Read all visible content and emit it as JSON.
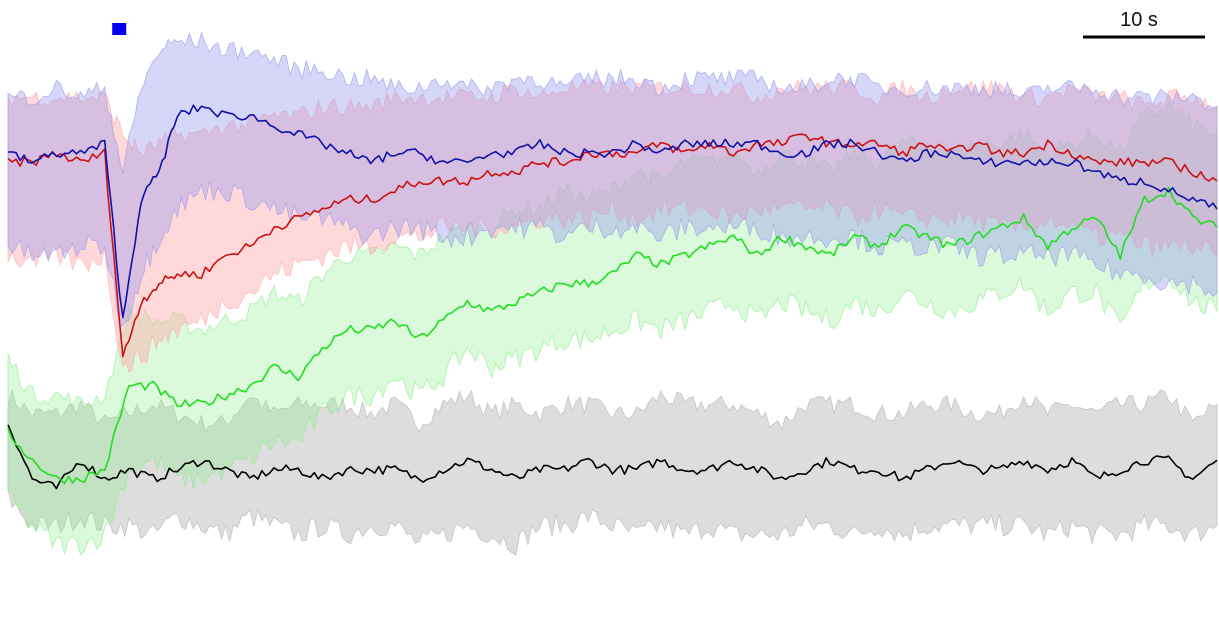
{
  "chart_data": {
    "type": "line",
    "title": "",
    "xlabel": "",
    "ylabel": "",
    "grid": false,
    "legend": "none",
    "xlim": [
      0,
      100
    ],
    "ylim": [
      -3.4,
      2.4
    ],
    "scale_bar": {
      "label": "10 s",
      "seconds": 10
    },
    "stimulus_marker": {
      "x": 9.2,
      "color": "#0000ee"
    },
    "series": [
      {
        "color": "#000000",
        "band_color": "#b4b4b4",
        "band_opacity": 0.45,
        "x": [
          0,
          2,
          4,
          6,
          8,
          10,
          12,
          14,
          16,
          18,
          20,
          22,
          24,
          26,
          28,
          30,
          32,
          34,
          36,
          38,
          40,
          42,
          44,
          46,
          48,
          50,
          52,
          54,
          56,
          58,
          60,
          62,
          64,
          66,
          68,
          70,
          72,
          74,
          76,
          78,
          80,
          82,
          84,
          86,
          88,
          90,
          92,
          94,
          96,
          98,
          100
        ],
        "mean": [
          -1.5,
          -2.1,
          -2.2,
          -1.9,
          -2.1,
          -2.0,
          -2.1,
          -2.0,
          -1.9,
          -2.0,
          -2.1,
          -2.0,
          -2.0,
          -2.1,
          -2.0,
          -2.0,
          -2.0,
          -2.1,
          -2.0,
          -1.9,
          -2.0,
          -2.1,
          -2.0,
          -2.0,
          -1.9,
          -2.0,
          -2.0,
          -1.9,
          -2.0,
          -2.0,
          -1.9,
          -2.0,
          -2.1,
          -2.0,
          -1.9,
          -2.0,
          -2.0,
          -2.1,
          -2.0,
          -1.9,
          -2.0,
          -2.0,
          -1.9,
          -2.0,
          -1.9,
          -2.1,
          -2.0,
          -1.9,
          -1.9,
          -2.1,
          -1.9
        ],
        "upper": [
          -1.2,
          -1.4,
          -1.4,
          -1.3,
          -1.5,
          -1.4,
          -1.3,
          -1.4,
          -1.5,
          -1.5,
          -1.2,
          -1.4,
          -1.3,
          -1.3,
          -1.3,
          -1.4,
          -1.3,
          -1.5,
          -1.3,
          -1.2,
          -1.4,
          -1.3,
          -1.4,
          -1.3,
          -1.3,
          -1.4,
          -1.4,
          -1.2,
          -1.3,
          -1.3,
          -1.3,
          -1.4,
          -1.5,
          -1.3,
          -1.3,
          -1.3,
          -1.4,
          -1.4,
          -1.3,
          -1.3,
          -1.4,
          -1.4,
          -1.2,
          -1.4,
          -1.3,
          -1.4,
          -1.3,
          -1.3,
          -1.2,
          -1.5,
          -1.3
        ],
        "lower": [
          -2.3,
          -2.6,
          -2.6,
          -2.5,
          -2.6,
          -2.6,
          -2.7,
          -2.5,
          -2.6,
          -2.7,
          -2.5,
          -2.6,
          -2.7,
          -2.6,
          -2.7,
          -2.6,
          -2.6,
          -2.8,
          -2.7,
          -2.6,
          -2.7,
          -2.8,
          -2.6,
          -2.6,
          -2.5,
          -2.6,
          -2.7,
          -2.6,
          -2.7,
          -2.6,
          -2.7,
          -2.7,
          -2.7,
          -2.6,
          -2.6,
          -2.7,
          -2.6,
          -2.7,
          -2.6,
          -2.6,
          -2.6,
          -2.6,
          -2.6,
          -2.7,
          -2.6,
          -2.7,
          -2.7,
          -2.6,
          -2.6,
          -2.7,
          -2.6
        ]
      },
      {
        "color": "#22dd22",
        "band_color": "#88ee88",
        "band_opacity": 0.3,
        "x": [
          0,
          2,
          4,
          6,
          8,
          10,
          12,
          14,
          16,
          18,
          20,
          22,
          24,
          26,
          28,
          30,
          32,
          34,
          36,
          38,
          40,
          42,
          44,
          46,
          48,
          50,
          52,
          54,
          56,
          58,
          60,
          62,
          64,
          66,
          68,
          70,
          72,
          74,
          76,
          78,
          80,
          82,
          84,
          86,
          88,
          90,
          92,
          94,
          96,
          98,
          100
        ],
        "mean": [
          -1.6,
          -1.9,
          -2.1,
          -2.1,
          -2.0,
          -1.1,
          -1.1,
          -1.3,
          -1.3,
          -1.2,
          -1.1,
          -0.9,
          -1.0,
          -0.7,
          -0.5,
          -0.5,
          -0.4,
          -0.6,
          -0.4,
          -0.2,
          -0.3,
          -0.2,
          -0.1,
          0.0,
          0.0,
          0.1,
          0.3,
          0.2,
          0.3,
          0.4,
          0.5,
          0.3,
          0.5,
          0.4,
          0.3,
          0.5,
          0.4,
          0.6,
          0.5,
          0.4,
          0.5,
          0.6,
          0.7,
          0.4,
          0.6,
          0.7,
          0.3,
          0.9,
          1.0,
          0.7,
          0.6
        ],
        "upper": [
          -0.8,
          -1.2,
          -1.2,
          -1.3,
          -1.2,
          -0.3,
          -0.4,
          -0.4,
          -0.5,
          -0.4,
          -0.3,
          -0.1,
          -0.2,
          0.1,
          0.3,
          0.3,
          0.4,
          0.3,
          0.5,
          0.6,
          0.6,
          0.8,
          0.8,
          1.0,
          0.9,
          1.0,
          1.2,
          1.1,
          1.3,
          1.3,
          1.4,
          1.2,
          1.4,
          1.3,
          1.2,
          1.4,
          1.3,
          1.5,
          1.5,
          1.4,
          1.5,
          1.5,
          1.6,
          1.4,
          1.5,
          1.6,
          1.4,
          1.8,
          1.9,
          1.7,
          1.6
        ],
        "lower": [
          -2.3,
          -2.6,
          -2.8,
          -2.8,
          -2.7,
          -2.0,
          -1.9,
          -2.1,
          -2.1,
          -2.0,
          -1.9,
          -1.7,
          -1.7,
          -1.4,
          -1.2,
          -1.2,
          -1.0,
          -1.2,
          -1.0,
          -0.7,
          -0.9,
          -0.8,
          -0.7,
          -0.6,
          -0.6,
          -0.5,
          -0.4,
          -0.5,
          -0.4,
          -0.3,
          -0.2,
          -0.4,
          -0.2,
          -0.3,
          -0.4,
          -0.2,
          -0.3,
          -0.1,
          -0.2,
          -0.3,
          -0.2,
          -0.1,
          0.0,
          -0.3,
          -0.1,
          -0.1,
          -0.5,
          0.0,
          0.1,
          -0.2,
          -0.3
        ]
      },
      {
        "color": "#cc1111",
        "band_color": "#ffaaaa",
        "band_opacity": 0.45,
        "x": [
          0,
          2,
          4,
          6,
          8,
          9.5,
          11,
          12.5,
          14,
          16,
          18,
          20,
          22,
          24,
          26,
          28,
          30,
          32,
          34,
          36,
          38,
          40,
          42,
          44,
          46,
          48,
          50,
          52,
          54,
          56,
          58,
          60,
          62,
          64,
          66,
          68,
          70,
          72,
          74,
          76,
          78,
          80,
          82,
          84,
          86,
          88,
          90,
          92,
          94,
          96,
          98,
          100
        ],
        "mean": [
          1.3,
          1.3,
          1.4,
          1.3,
          1.4,
          -0.8,
          -0.2,
          0.0,
          0.1,
          0.1,
          0.3,
          0.4,
          0.6,
          0.7,
          0.8,
          0.9,
          0.9,
          1.0,
          1.1,
          1.1,
          1.1,
          1.2,
          1.2,
          1.3,
          1.3,
          1.4,
          1.4,
          1.4,
          1.5,
          1.4,
          1.5,
          1.4,
          1.5,
          1.5,
          1.6,
          1.5,
          1.5,
          1.5,
          1.4,
          1.5,
          1.4,
          1.5,
          1.4,
          1.4,
          1.5,
          1.4,
          1.3,
          1.3,
          1.3,
          1.3,
          1.2,
          1.1
        ],
        "upper": [
          2.0,
          2.0,
          2.0,
          2.0,
          2.0,
          1.6,
          1.4,
          1.5,
          1.6,
          1.6,
          1.7,
          1.7,
          1.8,
          1.8,
          1.9,
          1.9,
          1.9,
          2.0,
          2.0,
          2.0,
          2.0,
          2.0,
          2.1,
          2.0,
          2.1,
          2.1,
          2.1,
          2.1,
          2.1,
          2.1,
          2.1,
          2.1,
          2.0,
          2.1,
          2.1,
          2.1,
          2.1,
          2.0,
          2.1,
          2.0,
          2.1,
          2.1,
          2.1,
          2.0,
          2.0,
          2.1,
          2.0,
          2.0,
          1.9,
          2.0,
          2.0,
          1.9
        ],
        "lower": [
          0.3,
          0.2,
          0.3,
          0.2,
          0.3,
          -0.9,
          -0.8,
          -0.6,
          -0.5,
          -0.4,
          -0.2,
          -0.1,
          0.1,
          0.2,
          0.3,
          0.4,
          0.4,
          0.5,
          0.5,
          0.6,
          0.6,
          0.6,
          0.6,
          0.7,
          0.7,
          0.7,
          0.8,
          0.7,
          0.8,
          0.8,
          0.8,
          0.7,
          0.8,
          0.8,
          0.8,
          0.8,
          0.7,
          0.8,
          0.7,
          0.7,
          0.7,
          0.7,
          0.6,
          0.6,
          0.7,
          0.6,
          0.5,
          0.5,
          0.4,
          0.4,
          0.4,
          0.3
        ]
      },
      {
        "color": "#1111aa",
        "band_color": "#9999ee",
        "band_opacity": 0.4,
        "x": [
          0,
          2,
          4,
          6,
          8,
          9.5,
          11,
          12.5,
          14,
          16,
          18,
          20,
          22,
          24,
          26,
          28,
          30,
          32,
          34,
          36,
          38,
          40,
          42,
          44,
          46,
          48,
          50,
          52,
          54,
          56,
          58,
          60,
          62,
          64,
          66,
          68,
          70,
          72,
          74,
          76,
          78,
          80,
          82,
          84,
          86,
          88,
          90,
          92,
          94,
          96,
          98,
          100
        ],
        "mean": [
          1.4,
          1.3,
          1.4,
          1.4,
          1.5,
          -0.4,
          0.9,
          1.2,
          1.8,
          1.9,
          1.8,
          1.8,
          1.7,
          1.6,
          1.5,
          1.4,
          1.3,
          1.4,
          1.4,
          1.3,
          1.3,
          1.4,
          1.4,
          1.5,
          1.4,
          1.4,
          1.4,
          1.5,
          1.4,
          1.5,
          1.5,
          1.5,
          1.5,
          1.4,
          1.4,
          1.5,
          1.5,
          1.4,
          1.3,
          1.4,
          1.4,
          1.3,
          1.3,
          1.3,
          1.3,
          1.3,
          1.2,
          1.1,
          1.1,
          1.0,
          0.9,
          0.8
        ],
        "upper": [
          2.0,
          2.0,
          2.1,
          2.0,
          2.1,
          1.2,
          2.1,
          2.5,
          2.6,
          2.6,
          2.5,
          2.5,
          2.4,
          2.3,
          2.3,
          2.2,
          2.2,
          2.1,
          2.1,
          2.2,
          2.1,
          2.1,
          2.2,
          2.2,
          2.1,
          2.2,
          2.2,
          2.2,
          2.1,
          2.2,
          2.2,
          2.2,
          2.2,
          2.1,
          2.1,
          2.2,
          2.2,
          2.1,
          2.1,
          2.1,
          2.1,
          2.1,
          2.1,
          2.0,
          2.1,
          2.1,
          2.1,
          2.0,
          2.0,
          2.0,
          2.0,
          1.9
        ],
        "lower": [
          0.4,
          0.3,
          0.3,
          0.4,
          0.4,
          -0.5,
          0.1,
          0.5,
          0.8,
          1.0,
          1.0,
          0.9,
          0.8,
          0.7,
          0.7,
          0.6,
          0.5,
          0.6,
          0.6,
          0.5,
          0.5,
          0.6,
          0.6,
          0.6,
          0.5,
          0.6,
          0.6,
          0.6,
          0.5,
          0.6,
          0.6,
          0.6,
          0.6,
          0.5,
          0.5,
          0.5,
          0.5,
          0.4,
          0.4,
          0.4,
          0.4,
          0.3,
          0.3,
          0.3,
          0.3,
          0.3,
          0.2,
          0.1,
          0.1,
          0.0,
          0.0,
          -0.1
        ]
      }
    ]
  }
}
